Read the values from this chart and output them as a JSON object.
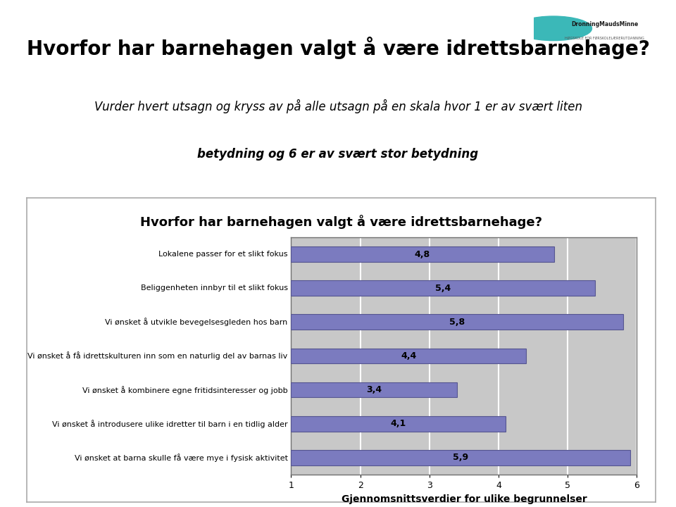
{
  "title_main": "Hvorfor har barnehagen valgt å være idrettsbarnehage?",
  "chart_title": "Hvorfor har barnehagen valgt å være idrettsbarnehage?",
  "subtitle_line1": "Vurder hvert utsagn og kryss av på alle utsagn på en skala hvor 1 er av svært liten",
  "subtitle_line2": "betydning og 6 er av svært stor betydning",
  "categories": [
    "Lokalene passer for et slikt fokus",
    "Beliggenheten innbyr til et slikt fokus",
    "Vi ønsket å utvikle bevegelsesgleden hos barn",
    "Vi ønsket å få idrettskulturen inn som en naturlig del av barnas liv",
    "Vi ønsket å kombinere egne fritidsinteresser og jobb",
    "Vi ønsket å introdusere ulike idretter til barn i en tidlig alder",
    "Vi ønsket at barna skulle få være mye i fysisk aktivitet"
  ],
  "values": [
    4.8,
    5.4,
    5.8,
    4.4,
    3.4,
    4.1,
    5.9
  ],
  "bar_color": "#7b7bbf",
  "bar_edge_color": "#555590",
  "background_color": "#ffffff",
  "header_bg_color": "#3bb8b8",
  "chart_box_bg": "#ffffff",
  "chart_plot_bg": "#c8c8c8",
  "grid_color": "#ffffff",
  "xlabel": "Gjennomsnittsverdier for ulike begrunnelser",
  "xlim": [
    1,
    6
  ],
  "xticks": [
    1,
    2,
    3,
    4,
    5,
    6
  ],
  "value_label_fontsize": 9,
  "category_fontsize": 8,
  "chart_title_fontsize": 13,
  "xlabel_fontsize": 10,
  "main_title_fontsize": 20,
  "subtitle_fontsize": 12
}
